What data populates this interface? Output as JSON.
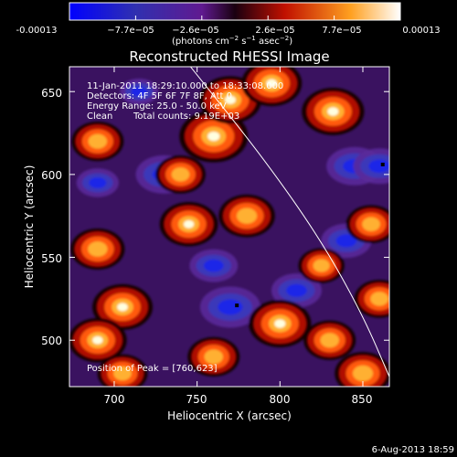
{
  "chart_data": {
    "type": "heatmap",
    "title": "Reconstructed RHESSI Image",
    "xlabel": "Heliocentric X (arcsec)",
    "ylabel": "Heliocentric Y (arcsec)",
    "xlim": [
      673,
      866
    ],
    "ylim": [
      472,
      665
    ],
    "x_ticks": [
      700,
      750,
      800,
      850
    ],
    "y_ticks": [
      500,
      550,
      600,
      650
    ],
    "colorbar": {
      "range": [
        -0.00013,
        0.00013
      ],
      "tick_labels": [
        "-0.00013",
        "−7.7e−05",
        "−2.6e−05",
        "2.6e−05",
        "7.7e−05",
        "0.00013"
      ],
      "unit_label": "(photons cm",
      "unit_exp1": "−2",
      "unit_mid": " s",
      "unit_exp2": "−1",
      "unit_mid2": " asec",
      "unit_exp3": "−2",
      "unit_end": ")"
    },
    "annotations": {
      "time": "11-Jan-2011 18:29:10.000 to 18:33:08.000",
      "detectors": "Detectors: 4F 5F 6F 7F 8F, Att 0",
      "energy": "Energy Range: 25.0 - 50.0 keV",
      "clean_label": "Clean",
      "counts": "Total counts: 9.19E+03",
      "peak": "Position of Peak = [760,623]"
    },
    "hot_regions": [
      {
        "x": 760,
        "y": 623,
        "v": 1.0
      },
      {
        "x": 770,
        "y": 645,
        "v": 0.85
      },
      {
        "x": 795,
        "y": 655,
        "v": 0.8
      },
      {
        "x": 832,
        "y": 638,
        "v": 0.85
      },
      {
        "x": 690,
        "y": 620,
        "v": 0.6
      },
      {
        "x": 740,
        "y": 600,
        "v": 0.55
      },
      {
        "x": 745,
        "y": 570,
        "v": 0.75
      },
      {
        "x": 780,
        "y": 575,
        "v": 0.7
      },
      {
        "x": 690,
        "y": 555,
        "v": 0.65
      },
      {
        "x": 855,
        "y": 570,
        "v": 0.55
      },
      {
        "x": 825,
        "y": 545,
        "v": 0.45
      },
      {
        "x": 705,
        "y": 520,
        "v": 0.8
      },
      {
        "x": 690,
        "y": 500,
        "v": 0.75
      },
      {
        "x": 705,
        "y": 480,
        "v": 0.55
      },
      {
        "x": 760,
        "y": 490,
        "v": 0.6
      },
      {
        "x": 800,
        "y": 510,
        "v": 0.85
      },
      {
        "x": 830,
        "y": 500,
        "v": 0.6
      },
      {
        "x": 850,
        "y": 480,
        "v": 0.7
      },
      {
        "x": 860,
        "y": 525,
        "v": 0.55
      }
    ],
    "cold_regions": [
      {
        "x": 730,
        "y": 600,
        "v": -0.7
      },
      {
        "x": 770,
        "y": 520,
        "v": -0.8
      },
      {
        "x": 810,
        "y": 530,
        "v": -0.55
      },
      {
        "x": 845,
        "y": 605,
        "v": -0.7
      },
      {
        "x": 860,
        "y": 605,
        "v": -0.6
      },
      {
        "x": 690,
        "y": 595,
        "v": -0.35
      },
      {
        "x": 840,
        "y": 560,
        "v": -0.55
      },
      {
        "x": 760,
        "y": 545,
        "v": -0.5
      },
      {
        "x": 715,
        "y": 650,
        "v": -0.25
      }
    ],
    "markers": [
      {
        "x": 774,
        "y": 521
      },
      {
        "x": 862,
        "y": 606
      }
    ],
    "limb_curve": [
      [
        746,
        665
      ],
      [
        790,
        610
      ],
      [
        825,
        560
      ],
      [
        850,
        515
      ],
      [
        866,
        478
      ]
    ]
  },
  "footer_date": "6-Aug-2013 18:59"
}
